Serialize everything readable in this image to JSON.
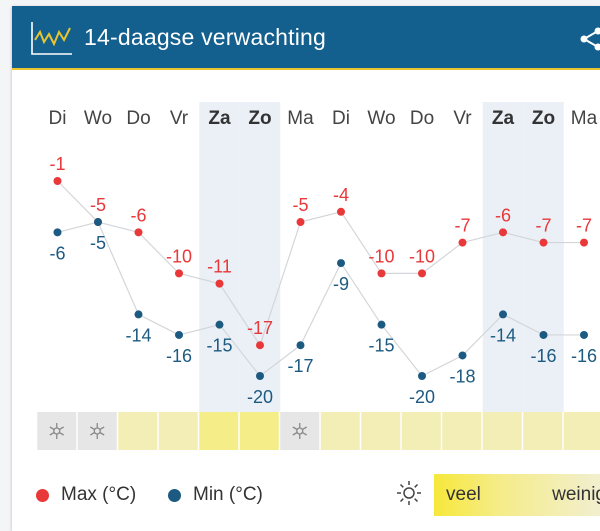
{
  "header": {
    "title": "14-daagse verwachting",
    "icon": "line-chart-icon",
    "share_icon": "share-icon"
  },
  "colors": {
    "header_bg": "#135f8e",
    "accent_line": "#e8c531",
    "max": "#e8383a",
    "min": "#1c5a82",
    "weekend_band": "#eaf0f6"
  },
  "legend": {
    "max_label": "Max (°C)",
    "min_label": "Min (°C)",
    "sun_high": "veel",
    "sun_low": "weinig",
    "sun_icon": "sun-icon"
  },
  "chart_data": {
    "type": "line",
    "categories": [
      "Di",
      "Wo",
      "Do",
      "Vr",
      "Za",
      "Zo",
      "Ma",
      "Di",
      "Wo",
      "Do",
      "Vr",
      "Za",
      "Zo",
      "Ma"
    ],
    "weekend": [
      false,
      false,
      false,
      false,
      true,
      true,
      false,
      false,
      false,
      false,
      false,
      true,
      true,
      false
    ],
    "series": [
      {
        "name": "Max (°C)",
        "values": [
          -1,
          -5,
          -6,
          -10,
          -11,
          -17,
          -5,
          -4,
          -10,
          -10,
          -7,
          -6,
          -7,
          -7
        ]
      },
      {
        "name": "Min (°C)",
        "values": [
          -6,
          -5,
          -14,
          -16,
          -15,
          -20,
          -17,
          -9,
          -15,
          -20,
          -18,
          -14,
          -16,
          -16
        ]
      }
    ],
    "sunshine": [
      0.1,
      0.15,
      0.25,
      0.25,
      0.7,
      0.7,
      0.15,
      0.25,
      0.25,
      0.25,
      0.25,
      0.25,
      0.25,
      0.25
    ],
    "snow": [
      true,
      true,
      false,
      false,
      false,
      false,
      true,
      false,
      false,
      false,
      false,
      false,
      false,
      false
    ],
    "ylim": [
      -22,
      0
    ]
  }
}
